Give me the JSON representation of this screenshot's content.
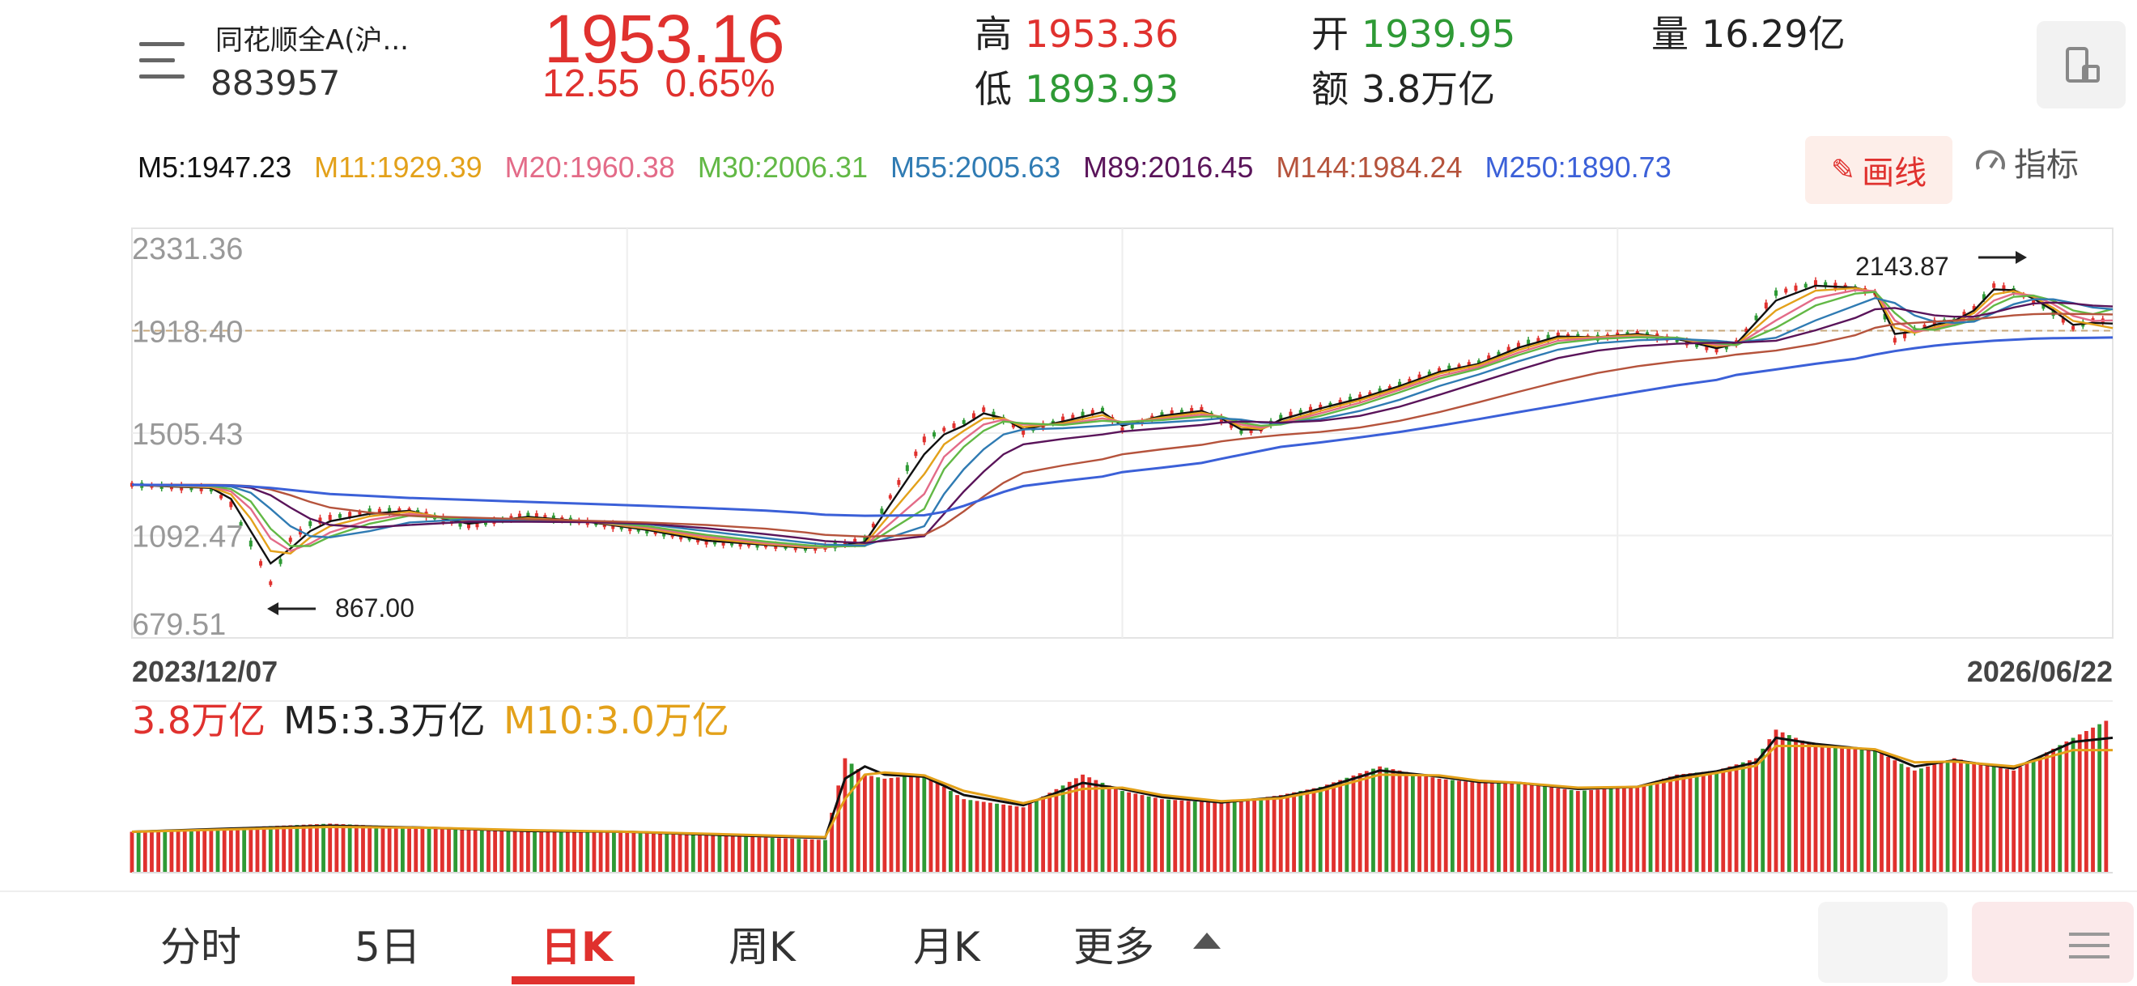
{
  "header": {
    "name": "同花顺全A(沪...",
    "code": "883957",
    "price": "1953.16",
    "change": "12.55",
    "change_pct": "0.65%",
    "high_label": "高",
    "high": "1953.36",
    "low_label": "低",
    "low": "1893.93",
    "open_label": "开",
    "open": "1939.95",
    "amount_label": "额",
    "amount": "3.8万亿",
    "volume_label": "量",
    "volume": "16.29亿"
  },
  "ma_labels": [
    {
      "text": "M5:1947.23",
      "color": "#111111"
    },
    {
      "text": "M11:1929.39",
      "color": "#e3a11a"
    },
    {
      "text": "M20:1960.38",
      "color": "#e36b88"
    },
    {
      "text": "M30:2006.31",
      "color": "#62b845"
    },
    {
      "text": "M55:2005.63",
      "color": "#2f7bb3"
    },
    {
      "text": "M89:2016.45",
      "color": "#5a145a"
    },
    {
      "text": "M144:1984.24",
      "color": "#b5533c"
    },
    {
      "text": "M250:1890.73",
      "color": "#3b60d8"
    }
  ],
  "buttons": {
    "draw": "画线",
    "indicator": "指标"
  },
  "chart_data": [
    {
      "type": "line",
      "title": "",
      "y_ticks": [
        "2331.36",
        "1918.40",
        "1505.43",
        "1092.47",
        "679.51"
      ],
      "ylim": [
        679.51,
        2331.36
      ],
      "reference_line": 1918.4,
      "x_start": "2023/12/07",
      "x_end": "2026/06/22",
      "annotations": {
        "max": "2143.87",
        "min": "867.00"
      },
      "x": [
        0,
        0.02,
        0.04,
        0.05,
        0.06,
        0.07,
        0.08,
        0.09,
        0.1,
        0.12,
        0.14,
        0.17,
        0.2,
        0.23,
        0.26,
        0.29,
        0.32,
        0.34,
        0.35,
        0.37,
        0.4,
        0.41,
        0.42,
        0.43,
        0.44,
        0.45,
        0.47,
        0.49,
        0.5,
        0.52,
        0.54,
        0.55,
        0.56,
        0.57,
        0.58,
        0.6,
        0.62,
        0.64,
        0.66,
        0.68,
        0.7,
        0.72,
        0.74,
        0.76,
        0.78,
        0.8,
        0.81,
        0.83,
        0.85,
        0.87,
        0.88,
        0.89,
        0.9,
        0.91,
        0.92,
        0.93,
        0.94,
        0.95,
        0.96,
        0.97,
        0.98,
        0.99,
        1.0
      ],
      "close": [
        1297,
        1288,
        1280,
        1218,
        1060,
        900,
        1075,
        1140,
        1165,
        1190,
        1195,
        1130,
        1175,
        1145,
        1112,
        1068,
        1052,
        1040,
        1045,
        1075,
        1480,
        1520,
        1550,
        1600,
        1560,
        1510,
        1560,
        1600,
        1520,
        1580,
        1600,
        1560,
        1510,
        1520,
        1570,
        1610,
        1650,
        1700,
        1760,
        1790,
        1860,
        1900,
        1890,
        1910,
        1880,
        1840,
        1870,
        2070,
        2110,
        2090,
        2070,
        1880,
        1920,
        1950,
        1960,
        2010,
        2100,
        2080,
        2040,
        1990,
        1930,
        1960,
        1953
      ],
      "series": [
        {
          "name": "M5",
          "values": [
            1297,
            1290,
            1284,
            1240,
            1110,
            980,
            1040,
            1110,
            1150,
            1180,
            1192,
            1140,
            1168,
            1148,
            1115,
            1072,
            1055,
            1043,
            1044,
            1066,
            1420,
            1500,
            1535,
            1585,
            1565,
            1520,
            1552,
            1590,
            1535,
            1575,
            1595,
            1565,
            1520,
            1520,
            1560,
            1605,
            1645,
            1695,
            1752,
            1785,
            1850,
            1895,
            1892,
            1905,
            1885,
            1848,
            1866,
            2040,
            2100,
            2092,
            2072,
            1905,
            1915,
            1942,
            1958,
            2000,
            2085,
            2082,
            2048,
            2000,
            1942,
            1950,
            1947
          ]
        },
        {
          "name": "M11",
          "values": [
            1297,
            1292,
            1287,
            1258,
            1160,
            1030,
            1020,
            1085,
            1130,
            1170,
            1188,
            1150,
            1162,
            1150,
            1120,
            1080,
            1058,
            1046,
            1044,
            1058,
            1340,
            1460,
            1515,
            1565,
            1565,
            1530,
            1545,
            1578,
            1545,
            1568,
            1588,
            1570,
            1530,
            1522,
            1550,
            1595,
            1638,
            1688,
            1745,
            1780,
            1840,
            1888,
            1892,
            1900,
            1888,
            1856,
            1862,
            2000,
            2080,
            2090,
            2075,
            1930,
            1910,
            1932,
            1952,
            1990,
            2065,
            2078,
            2055,
            2010,
            1958,
            1944,
            1929
          ]
        },
        {
          "name": "M20",
          "values": [
            1297,
            1293,
            1290,
            1270,
            1200,
            1080,
            1030,
            1060,
            1105,
            1155,
            1180,
            1155,
            1158,
            1150,
            1125,
            1088,
            1062,
            1050,
            1046,
            1052,
            1260,
            1410,
            1480,
            1540,
            1560,
            1540,
            1540,
            1565,
            1550,
            1562,
            1580,
            1572,
            1540,
            1528,
            1545,
            1585,
            1628,
            1680,
            1735,
            1772,
            1830,
            1878,
            1890,
            1895,
            1890,
            1862,
            1860,
            1960,
            2050,
            2082,
            2078,
            1960,
            1915,
            1925,
            1945,
            1975,
            2040,
            2068,
            2060,
            2025,
            1978,
            1958,
            1960
          ]
        },
        {
          "name": "M30",
          "values": [
            1297,
            1294,
            1292,
            1280,
            1230,
            1120,
            1050,
            1050,
            1088,
            1140,
            1172,
            1158,
            1155,
            1150,
            1130,
            1095,
            1068,
            1054,
            1048,
            1050,
            1200,
            1360,
            1450,
            1515,
            1552,
            1545,
            1538,
            1555,
            1550,
            1558,
            1572,
            1572,
            1548,
            1535,
            1540,
            1575,
            1618,
            1670,
            1725,
            1765,
            1820,
            1868,
            1885,
            1892,
            1890,
            1868,
            1860,
            1930,
            2020,
            2068,
            2075,
            1990,
            1925,
            1922,
            1940,
            1962,
            2020,
            2055,
            2060,
            2040,
            2000,
            1985,
            2006
          ]
        },
        {
          "name": "M55",
          "values": [
            1297,
            1296,
            1295,
            1290,
            1265,
            1200,
            1130,
            1090,
            1085,
            1110,
            1145,
            1158,
            1150,
            1148,
            1138,
            1110,
            1082,
            1064,
            1056,
            1052,
            1130,
            1260,
            1360,
            1440,
            1500,
            1520,
            1525,
            1535,
            1542,
            1548,
            1558,
            1565,
            1560,
            1548,
            1545,
            1562,
            1595,
            1640,
            1695,
            1742,
            1795,
            1842,
            1868,
            1880,
            1885,
            1878,
            1870,
            1890,
            1960,
            2020,
            2050,
            2030,
            1980,
            1955,
            1950,
            1955,
            1990,
            2025,
            2045,
            2045,
            2030,
            2012,
            2005
          ]
        },
        {
          "name": "M89",
          "values": [
            1297,
            1297,
            1296,
            1294,
            1285,
            1255,
            1205,
            1160,
            1135,
            1125,
            1135,
            1148,
            1148,
            1146,
            1140,
            1122,
            1098,
            1080,
            1070,
            1062,
            1090,
            1180,
            1270,
            1350,
            1420,
            1460,
            1482,
            1500,
            1512,
            1525,
            1538,
            1548,
            1552,
            1550,
            1548,
            1555,
            1575,
            1612,
            1660,
            1710,
            1760,
            1808,
            1838,
            1856,
            1866,
            1870,
            1870,
            1878,
            1920,
            1970,
            2005,
            2010,
            1995,
            1980,
            1975,
            1975,
            1992,
            2012,
            2028,
            2032,
            2028,
            2020,
            2016
          ]
        },
        {
          "name": "M144",
          "values": [
            1297,
            1297,
            1297,
            1296,
            1292,
            1278,
            1255,
            1228,
            1205,
            1185,
            1172,
            1165,
            1158,
            1152,
            1145,
            1135,
            1120,
            1105,
            1095,
            1088,
            1095,
            1135,
            1190,
            1250,
            1305,
            1345,
            1375,
            1400,
            1420,
            1440,
            1458,
            1472,
            1482,
            1490,
            1498,
            1510,
            1528,
            1555,
            1590,
            1630,
            1672,
            1712,
            1748,
            1775,
            1795,
            1810,
            1822,
            1838,
            1865,
            1900,
            1930,
            1945,
            1950,
            1955,
            1960,
            1965,
            1972,
            1980,
            1985,
            1987,
            1986,
            1985,
            1984
          ]
        },
        {
          "name": "M250",
          "values": [
            1297,
            1296,
            1295,
            1294,
            1290,
            1284,
            1276,
            1268,
            1260,
            1252,
            1244,
            1236,
            1228,
            1220,
            1212,
            1203,
            1193,
            1183,
            1176,
            1172,
            1174,
            1188,
            1212,
            1240,
            1268,
            1292,
            1312,
            1330,
            1348,
            1366,
            1385,
            1402,
            1418,
            1434,
            1450,
            1468,
            1488,
            1510,
            1535,
            1562,
            1590,
            1617,
            1645,
            1672,
            1698,
            1720,
            1740,
            1762,
            1785,
            1805,
            1822,
            1836,
            1848,
            1858,
            1866,
            1872,
            1878,
            1882,
            1886,
            1888,
            1889,
            1890,
            1891
          ]
        }
      ]
    },
    {
      "type": "bar",
      "title": "",
      "current_label": "3.8万亿",
      "m5_label": "M5:3.3万亿",
      "m10_label": "M10:3.0万亿",
      "x": [
        0,
        0.05,
        0.1,
        0.15,
        0.2,
        0.25,
        0.3,
        0.35,
        0.36,
        0.37,
        0.38,
        0.4,
        0.42,
        0.45,
        0.48,
        0.5,
        0.52,
        0.55,
        0.58,
        0.6,
        0.63,
        0.66,
        0.68,
        0.7,
        0.73,
        0.76,
        0.78,
        0.8,
        0.82,
        0.83,
        0.85,
        0.88,
        0.9,
        0.92,
        0.95,
        0.98,
        1.0
      ],
      "values": [
        1.0,
        1.1,
        1.2,
        1.1,
        1.0,
        1.0,
        0.9,
        0.8,
        2.8,
        2.4,
        2.3,
        2.4,
        1.8,
        1.6,
        2.4,
        2.0,
        1.8,
        1.7,
        1.9,
        2.1,
        2.6,
        2.3,
        2.2,
        2.2,
        2.0,
        2.1,
        2.4,
        2.5,
        2.8,
        3.5,
        3.1,
        3.0,
        2.5,
        2.8,
        2.5,
        3.3,
        3.8
      ],
      "series": [
        {
          "name": "M5",
          "values": [
            1.0,
            1.08,
            1.15,
            1.1,
            1.02,
            1.0,
            0.92,
            0.85,
            2.3,
            2.6,
            2.4,
            2.35,
            1.9,
            1.65,
            2.2,
            2.05,
            1.85,
            1.72,
            1.85,
            2.05,
            2.5,
            2.35,
            2.22,
            2.2,
            2.05,
            2.1,
            2.35,
            2.48,
            2.7,
            3.3,
            3.15,
            3.0,
            2.6,
            2.75,
            2.55,
            3.2,
            3.3
          ]
        },
        {
          "name": "M10",
          "values": [
            1.0,
            1.06,
            1.12,
            1.1,
            1.04,
            1.0,
            0.94,
            0.87,
            1.8,
            2.4,
            2.45,
            2.38,
            2.0,
            1.7,
            2.05,
            2.08,
            1.9,
            1.75,
            1.82,
            2.0,
            2.4,
            2.38,
            2.25,
            2.2,
            2.08,
            2.1,
            2.28,
            2.44,
            2.62,
            3.1,
            3.1,
            3.02,
            2.7,
            2.72,
            2.6,
            3.0,
            3.0
          ]
        }
      ]
    }
  ],
  "tabs": [
    {
      "label": "分时",
      "active": false
    },
    {
      "label": "5日",
      "active": false
    },
    {
      "label": "日K",
      "active": true
    },
    {
      "label": "周K",
      "active": false
    },
    {
      "label": "月K",
      "active": false
    },
    {
      "label": "更多",
      "active": false
    }
  ],
  "colors": {
    "up": "#e0312e",
    "down": "#2e9a35",
    "accent": "#e0312e"
  }
}
